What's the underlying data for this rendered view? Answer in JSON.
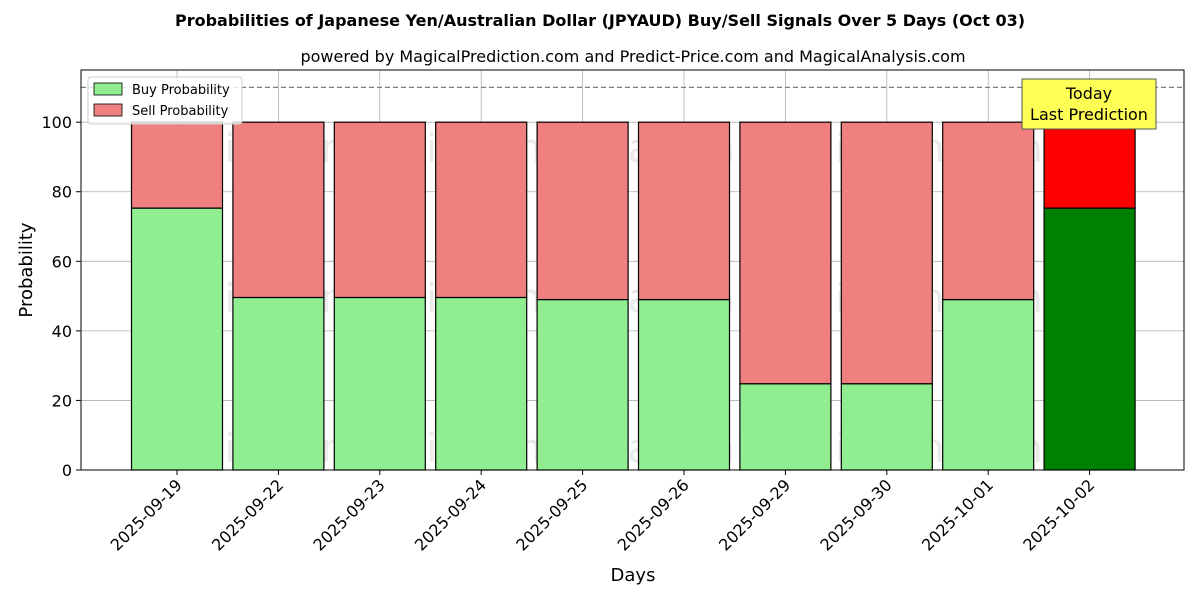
{
  "chart_data": {
    "type": "bar",
    "stacked": true,
    "title": "Probabilities of Japanese Yen/Australian Dollar (JPYAUD) Buy/Sell Signals Over 5 Days (Oct 03)",
    "subtitle": "powered by MagicalPrediction.com and Predict-Price.com and MagicalAnalysis.com",
    "xlabel": "Days",
    "ylabel": "Probability",
    "ylim": [
      0,
      115
    ],
    "yticks": [
      0,
      20,
      40,
      60,
      80,
      100
    ],
    "grid": true,
    "legend_position": "top-left",
    "categories": [
      "2025-09-19",
      "2025-09-22",
      "2025-09-23",
      "2025-09-24",
      "2025-09-25",
      "2025-09-26",
      "2025-09-29",
      "2025-09-30",
      "2025-10-01",
      "2025-10-02"
    ],
    "series": [
      {
        "name": "Buy Probability",
        "color": "#90ee90",
        "values": [
          75.3,
          49.6,
          49.6,
          49.6,
          49.0,
          49.0,
          24.8,
          24.8,
          49.0,
          75.3
        ]
      },
      {
        "name": "Sell Probability",
        "color": "#f08080",
        "values": [
          24.7,
          50.4,
          50.4,
          50.4,
          51.0,
          51.0,
          75.2,
          75.2,
          51.0,
          24.7
        ]
      }
    ],
    "highlight": {
      "category_index": 9,
      "buy_color": "#008000",
      "sell_color": "#ff0000"
    },
    "reference_line": {
      "y": 110,
      "style": "dashed"
    },
    "annotation": {
      "line1": "Today",
      "line2": "Last Prediction",
      "background": "#ffff55"
    },
    "watermarks": [
      "MagicalAnalysis.com",
      "MagicalPrediction.com"
    ]
  }
}
